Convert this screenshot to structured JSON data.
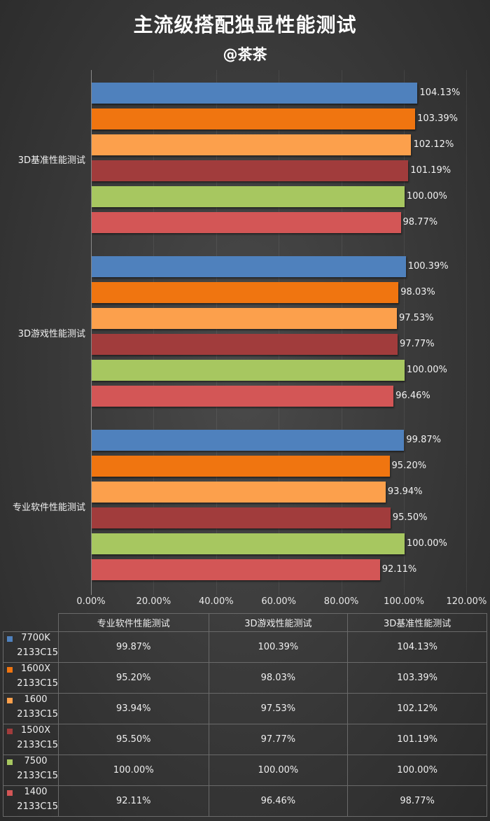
{
  "header": {
    "title": "主流级搭配独显性能测试",
    "subtitle": "@茶茶"
  },
  "axis": {
    "ticks": [
      "0.00%",
      "20.00%",
      "40.00%",
      "60.00%",
      "80.00%",
      "100.00%",
      "120.00%"
    ]
  },
  "categories_display": [
    {
      "label": "3D基准性能测试",
      "bars": [
        {
          "label": "104.13%"
        },
        {
          "label": "103.39%"
        },
        {
          "label": "102.12%"
        },
        {
          "label": "101.19%"
        },
        {
          "label": "100.00%"
        },
        {
          "label": "98.77%"
        }
      ]
    },
    {
      "label": "3D游戏性能测试",
      "bars": [
        {
          "label": "100.39%"
        },
        {
          "label": "98.03%"
        },
        {
          "label": "97.53%"
        },
        {
          "label": "97.77%"
        },
        {
          "label": "100.00%"
        },
        {
          "label": "96.46%"
        }
      ]
    },
    {
      "label": "专业软件性能测试",
      "bars": [
        {
          "label": "99.87%"
        },
        {
          "label": "95.20%"
        },
        {
          "label": "93.94%"
        },
        {
          "label": "95.50%"
        },
        {
          "label": "100.00%"
        },
        {
          "label": "92.11%"
        }
      ]
    }
  ],
  "table": {
    "headers": [
      "专业软件性能测试",
      "3D游戏性能测试",
      "3D基准性能测试"
    ],
    "rows": [
      {
        "name": "7700K",
        "mem": "2133C15",
        "color": "#4f81bd",
        "values": [
          "99.87%",
          "100.39%",
          "104.13%"
        ]
      },
      {
        "name": "1600X",
        "mem": "2133C15",
        "color": "#f07510",
        "values": [
          "95.20%",
          "98.03%",
          "103.39%"
        ]
      },
      {
        "name": "1600",
        "mem": "2133C15",
        "color": "#fca04c",
        "values": [
          "93.94%",
          "97.53%",
          "102.12%"
        ]
      },
      {
        "name": "1500X",
        "mem": "2133C15",
        "color": "#a13c3c",
        "values": [
          "95.50%",
          "97.77%",
          "101.19%"
        ]
      },
      {
        "name": "7500",
        "mem": "2133C15",
        "color": "#a7c760",
        "values": [
          "100.00%",
          "100.00%",
          "100.00%"
        ]
      },
      {
        "name": "1400",
        "mem": "2133C15",
        "color": "#d35656",
        "values": [
          "92.11%",
          "96.46%",
          "98.77%"
        ]
      }
    ]
  },
  "chart_data": {
    "type": "bar",
    "orientation": "horizontal",
    "title": "主流级搭配独显性能测试",
    "subtitle": "@茶茶",
    "categories": [
      "专业软件性能测试",
      "3D游戏性能测试",
      "3D基准性能测试"
    ],
    "series": [
      {
        "name": "7700K 2133C15",
        "color": "#4f81bd",
        "values": [
          99.87,
          100.39,
          104.13
        ]
      },
      {
        "name": "1600X 2133C15",
        "color": "#f07510",
        "values": [
          95.2,
          98.03,
          103.39
        ]
      },
      {
        "name": "1600 2133C15",
        "color": "#fca04c",
        "values": [
          93.94,
          97.53,
          102.12
        ]
      },
      {
        "name": "1500X 2133C15",
        "color": "#a13c3c",
        "values": [
          95.5,
          97.77,
          101.19
        ]
      },
      {
        "name": "7500 2133C15",
        "color": "#a7c760",
        "values": [
          100.0,
          100.0,
          100.0
        ]
      },
      {
        "name": "1400 2133C15",
        "color": "#d35656",
        "values": [
          92.11,
          96.46,
          98.77
        ]
      }
    ],
    "xlabel": "",
    "ylabel": "",
    "xlim": [
      0,
      120
    ],
    "x_ticks": [
      "0.00%",
      "20.00%",
      "40.00%",
      "60.00%",
      "80.00%",
      "100.00%",
      "120.00%"
    ],
    "value_format": "percent",
    "data_labels": true,
    "grid": true,
    "legend": "data table below chart"
  }
}
